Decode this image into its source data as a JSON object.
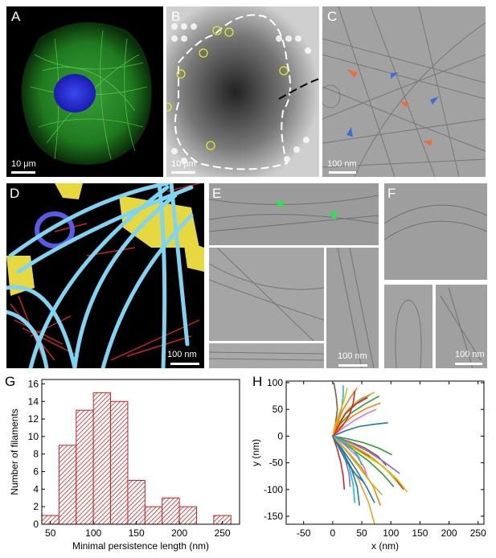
{
  "panels": {
    "A": {
      "label": "A",
      "scale": "10 μm"
    },
    "B": {
      "label": "B",
      "scale": "10 μm"
    },
    "C": {
      "label": "C",
      "scale": "100 nm"
    },
    "D": {
      "label": "D",
      "scale": "100 nm"
    },
    "E": {
      "label": "E",
      "scale": "100 nm"
    },
    "F": {
      "label": "F",
      "scale": "100 nm"
    },
    "G": {
      "label": "G"
    },
    "H": {
      "label": "H"
    }
  },
  "colors": {
    "histogram_fill": "#cc2222",
    "arrow_orange": "#f06a3a",
    "arrow_blue": "#3a6fd0",
    "arrow_green": "#33dd55",
    "circle_yellow": "#eeee22",
    "microtubule_cyan": "#7fd4f4",
    "actin_red": "#d02020",
    "membrane_yellow": "#e8d840"
  },
  "chart_data": [
    {
      "type": "bar",
      "panel": "G",
      "xlabel": "Minimal persistence length (nm)",
      "ylabel": "Number of filaments",
      "bin_width": 20,
      "x": [
        50,
        70,
        90,
        110,
        130,
        150,
        170,
        190,
        210,
        250
      ],
      "values": [
        1,
        9,
        13,
        15,
        14,
        5,
        2,
        3,
        2,
        1
      ],
      "xticks": [
        50,
        100,
        150,
        200,
        250
      ],
      "yticks": [
        0,
        2,
        4,
        6,
        8,
        10,
        12,
        14,
        16
      ],
      "xlim": [
        40,
        270
      ],
      "ylim": [
        0,
        16.5
      ]
    },
    {
      "type": "line",
      "panel": "H",
      "xlabel": "x (nm)",
      "ylabel": "y (nm)",
      "xticks": [
        -50,
        0,
        50,
        100,
        150,
        200,
        250
      ],
      "yticks": [
        100,
        50,
        0,
        -50,
        -100,
        -150
      ],
      "xlim": [
        -80,
        260
      ],
      "ylim": [
        -165,
        103
      ],
      "series": [
        {
          "color": "#1f77b4",
          "x": [
            0,
            20,
            40,
            58,
            72
          ],
          "y": [
            0,
            -30,
            -62,
            -95,
            -125
          ]
        },
        {
          "color": "#ff7f0e",
          "x": [
            0,
            25,
            50,
            70,
            82
          ],
          "y": [
            0,
            -28,
            -60,
            -95,
            -130
          ]
        },
        {
          "color": "#2ca02c",
          "x": [
            0,
            30,
            60,
            85,
            105
          ],
          "y": [
            0,
            -22,
            -45,
            -70,
            -95
          ]
        },
        {
          "color": "#d62728",
          "x": [
            0,
            35,
            70,
            100,
            122
          ],
          "y": [
            0,
            -20,
            -42,
            -70,
            -100
          ]
        },
        {
          "color": "#9467bd",
          "x": [
            0,
            12,
            22,
            28,
            30
          ],
          "y": [
            0,
            -22,
            -45,
            -70,
            -95
          ]
        },
        {
          "color": "#8c564b",
          "x": [
            0,
            28,
            55,
            78,
            92
          ],
          "y": [
            0,
            -10,
            -22,
            -38,
            -55
          ]
        },
        {
          "color": "#e377c2",
          "x": [
            0,
            22,
            42,
            55,
            60
          ],
          "y": [
            0,
            -18,
            -38,
            -60,
            -80
          ]
        },
        {
          "color": "#17becf",
          "x": [
            0,
            15,
            28,
            35,
            38
          ],
          "y": [
            0,
            -25,
            -55,
            -90,
            -125
          ]
        },
        {
          "color": "#bcbd22",
          "x": [
            0,
            30,
            62,
            90,
            110
          ],
          "y": [
            0,
            -15,
            -35,
            -60,
            -85
          ]
        },
        {
          "color": "#f0a020",
          "x": [
            0,
            22,
            45,
            62,
            72
          ],
          "y": [
            0,
            -40,
            -82,
            -125,
            -165
          ]
        },
        {
          "color": "#1f77b4",
          "x": [
            0,
            18,
            32,
            42,
            46
          ],
          "y": [
            0,
            -30,
            -60,
            -95,
            -130
          ]
        },
        {
          "color": "#e6b800",
          "x": [
            0,
            40,
            80,
            110,
            128
          ],
          "y": [
            0,
            -25,
            -52,
            -80,
            -105
          ]
        },
        {
          "color": "#d62728",
          "x": [
            0,
            8,
            14,
            18,
            20
          ],
          "y": [
            0,
            -25,
            -50,
            -75,
            -100
          ]
        },
        {
          "color": "#2ca02c",
          "x": [
            0,
            12,
            30,
            55,
            80
          ],
          "y": [
            0,
            22,
            42,
            60,
            75
          ]
        },
        {
          "color": "#ff7f0e",
          "x": [
            0,
            15,
            35,
            58,
            82
          ],
          "y": [
            0,
            20,
            38,
            52,
            62
          ]
        },
        {
          "color": "#9467bd",
          "x": [
            0,
            10,
            25,
            45,
            65
          ],
          "y": [
            0,
            25,
            48,
            65,
            78
          ]
        },
        {
          "color": "#17becf",
          "x": [
            0,
            8,
            15,
            18,
            18
          ],
          "y": [
            0,
            25,
            50,
            75,
            95
          ]
        },
        {
          "color": "#bcbd22",
          "x": [
            0,
            12,
            28,
            48,
            72
          ],
          "y": [
            0,
            28,
            52,
            70,
            82
          ]
        },
        {
          "color": "#8c564b",
          "x": [
            0,
            5,
            8,
            6,
            2
          ],
          "y": [
            0,
            25,
            50,
            75,
            100
          ]
        },
        {
          "color": "#1f77b4",
          "x": [
            0,
            22,
            45,
            70,
            95
          ],
          "y": [
            0,
            10,
            18,
            22,
            25
          ]
        },
        {
          "color": "#e377c2",
          "x": [
            0,
            18,
            38,
            58,
            75
          ],
          "y": [
            0,
            15,
            30,
            42,
            50
          ]
        },
        {
          "color": "#d62728",
          "x": [
            0,
            10,
            22,
            40,
            60
          ],
          "y": [
            0,
            20,
            42,
            60,
            72
          ]
        },
        {
          "color": "#2ca02c",
          "x": [
            0,
            25,
            52,
            78,
            102
          ],
          "y": [
            0,
            -5,
            -12,
            -22,
            -35
          ]
        },
        {
          "color": "#ff7f0e",
          "x": [
            0,
            8,
            18,
            30,
            42
          ],
          "y": [
            0,
            25,
            50,
            72,
            90
          ]
        },
        {
          "color": "#9467bd",
          "x": [
            0,
            30,
            60,
            88,
            115
          ],
          "y": [
            0,
            -12,
            -28,
            -48,
            -70
          ]
        },
        {
          "color": "#17becf",
          "x": [
            0,
            20,
            35,
            45,
            50
          ],
          "y": [
            0,
            -12,
            -25,
            -40,
            -55
          ]
        },
        {
          "color": "#bcbd22",
          "x": [
            0,
            25,
            48,
            68,
            85
          ],
          "y": [
            0,
            -30,
            -62,
            -90,
            -110
          ]
        },
        {
          "color": "#1f77b4",
          "x": [
            0,
            10,
            22,
            38,
            55
          ],
          "y": [
            0,
            -20,
            -45,
            -70,
            -88
          ]
        },
        {
          "color": "#e6b800",
          "x": [
            0,
            5,
            12,
            20,
            25
          ],
          "y": [
            0,
            22,
            45,
            68,
            90
          ]
        },
        {
          "color": "#d62728",
          "x": [
            0,
            16,
            28,
            35,
            38
          ],
          "y": [
            0,
            18,
            38,
            60,
            85
          ]
        }
      ]
    }
  ]
}
